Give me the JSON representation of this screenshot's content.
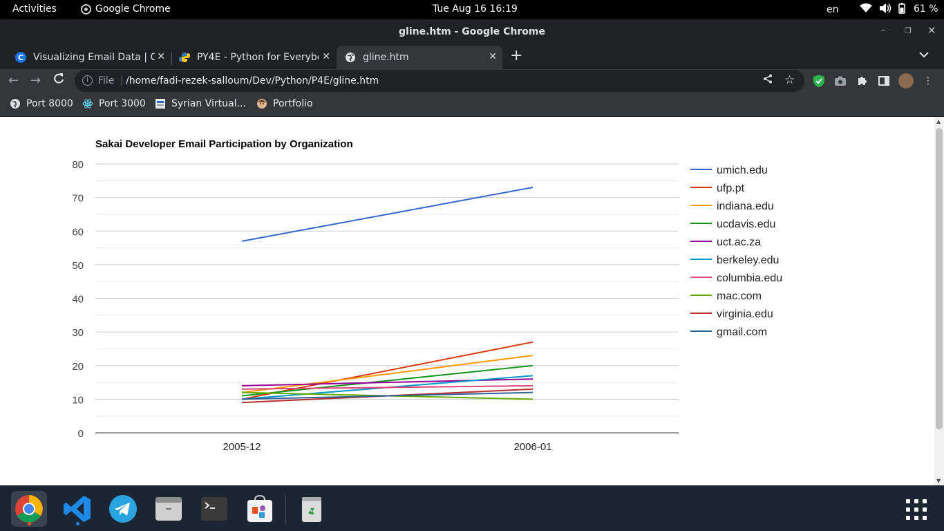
{
  "system": {
    "activities": "Activities",
    "app_name": "Google Chrome",
    "clock": "Tue Aug 16  16:19",
    "language": "en",
    "battery": "61 %"
  },
  "window": {
    "title": "gline.htm - Google Chrome"
  },
  "tabs": [
    {
      "label": "Visualizing Email Data | Co",
      "favicon_text": "C",
      "favicon_color": "#2196f3"
    },
    {
      "label": "PY4E - Python for Everybo",
      "favicon_text": "",
      "favicon_color": "#f5c518"
    },
    {
      "label": "gline.htm",
      "favicon_text": "",
      "favicon_color": "#dfe1e5"
    }
  ],
  "toolbar": {
    "scheme": "File",
    "url": "/home/fadi-rezek-salloum/Dev/Python/P4E/gline.htm"
  },
  "bookmarks": [
    {
      "label": "Port 8000",
      "icon": "globe-icon"
    },
    {
      "label": "Port 3000",
      "icon": "react-icon"
    },
    {
      "label": "Syrian Virtual...",
      "icon": "document-icon"
    },
    {
      "label": "Portfolio",
      "icon": "avatar-icon"
    }
  ],
  "chart_data": {
    "type": "line",
    "title": "Sakai Developer Email Participation by Organization",
    "xlabel": "",
    "ylabel": "",
    "categories": [
      "2005-12",
      "2006-01"
    ],
    "ylim": [
      0,
      80
    ],
    "yticks": [
      "0",
      "10",
      "20",
      "30",
      "40",
      "50",
      "60",
      "70",
      "80"
    ],
    "grid": true,
    "legend_position": "right",
    "series": [
      {
        "name": "umich.edu",
        "color": "#3366cc",
        "values": [
          57,
          73
        ]
      },
      {
        "name": "ufp.pt",
        "color": "#dc3912",
        "values": [
          10,
          27
        ]
      },
      {
        "name": "indiana.edu",
        "color": "#ff9900",
        "values": [
          12,
          23
        ]
      },
      {
        "name": "ucdavis.edu",
        "color": "#109618",
        "values": [
          11,
          20
        ]
      },
      {
        "name": "uct.ac.za",
        "color": "#990099",
        "values": [
          14,
          16
        ]
      },
      {
        "name": "berkeley.edu",
        "color": "#0099c6",
        "values": [
          10,
          17
        ]
      },
      {
        "name": "columbia.edu",
        "color": "#dd4477",
        "values": [
          13,
          14
        ]
      },
      {
        "name": "mac.com",
        "color": "#66aa00",
        "values": [
          12,
          10
        ]
      },
      {
        "name": "virginia.edu",
        "color": "#b82e2e",
        "values": [
          9,
          13
        ]
      },
      {
        "name": "gmail.com",
        "color": "#316395",
        "values": [
          10,
          12
        ]
      }
    ]
  }
}
